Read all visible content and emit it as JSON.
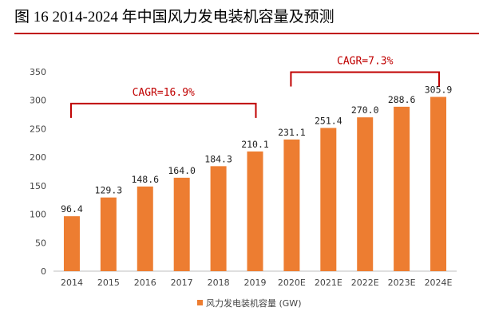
{
  "title": "图 16 2014-2024 年中国风力发电装机容量及预测",
  "chart_data": {
    "type": "bar",
    "categories": [
      "2014",
      "2015",
      "2016",
      "2017",
      "2018",
      "2019",
      "2020E",
      "2021E",
      "2022E",
      "2023E",
      "2024E"
    ],
    "series": [
      {
        "name": "风力发电装机容量 (GW)",
        "values": [
          96.4,
          129.3,
          148.6,
          164.0,
          184.3,
          210.1,
          231.1,
          251.4,
          270.0,
          288.6,
          305.9
        ]
      }
    ],
    "data_labels": [
      "96.4",
      "129.3",
      "148.6",
      "164.0",
      "184.3",
      "210.1",
      "231.1",
      "251.4",
      "270.0",
      "288.6",
      "305.9"
    ],
    "ylim": [
      0,
      350
    ],
    "yticks": [
      0,
      50,
      100,
      150,
      200,
      250,
      300,
      350
    ],
    "grid": false,
    "legend_position": "bottom",
    "annotations": [
      {
        "text": "CAGR=16.9%",
        "from": "2014",
        "to": "2019"
      },
      {
        "text": "CAGR=7.3%",
        "from": "2020E",
        "to": "2024E"
      }
    ],
    "colors": {
      "bar": "#ED7D31",
      "annotation": "#C00000",
      "title_rule": "#C00000"
    }
  }
}
